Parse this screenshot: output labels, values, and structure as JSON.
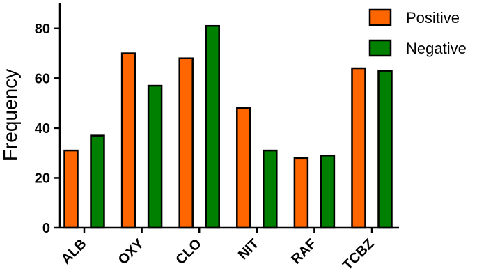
{
  "chart_data": {
    "type": "bar",
    "categories": [
      "ALB",
      "OXY",
      "CLO",
      "NIT",
      "RAF",
      "TCBZ"
    ],
    "series": [
      {
        "name": "Positive",
        "values": [
          31,
          70,
          68,
          48,
          28,
          64
        ],
        "color": "#FF6600"
      },
      {
        "name": "Negative",
        "values": [
          37,
          57,
          81,
          31,
          29,
          63
        ],
        "color": "#008000"
      }
    ],
    "title": "",
    "xlabel": "",
    "ylabel": "Frequency",
    "ylim": [
      0,
      90
    ],
    "yticks": [
      0,
      20,
      40,
      60,
      80
    ],
    "grid": false,
    "legend": "top-right"
  }
}
